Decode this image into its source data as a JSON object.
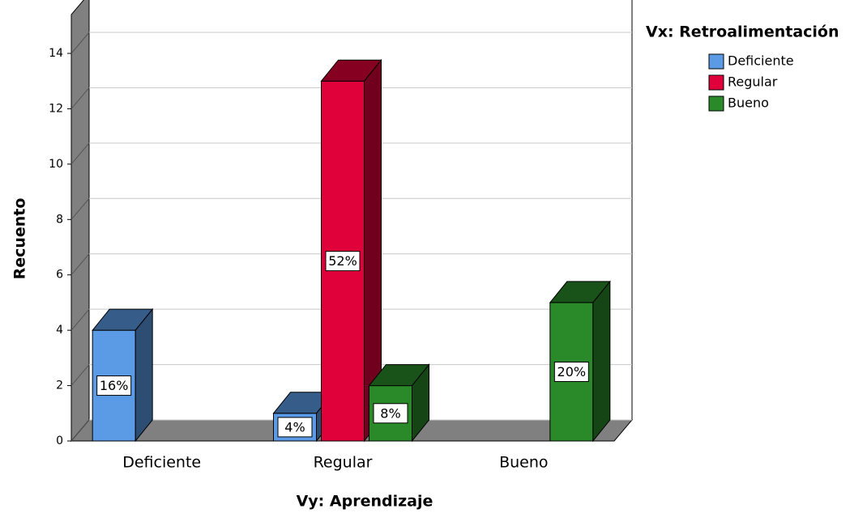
{
  "chart_data": {
    "type": "bar3d",
    "categories": [
      "Deficiente",
      "Regular",
      "Bueno"
    ],
    "series": [
      {
        "name": "Deficiente",
        "color": "#5b9be6",
        "values": [
          4,
          1,
          null
        ],
        "value_labels": [
          "16%",
          "4%",
          null
        ]
      },
      {
        "name": "Regular",
        "color": "#e0003a",
        "values": [
          null,
          13,
          null
        ],
        "value_labels": [
          null,
          "52%",
          null
        ]
      },
      {
        "name": "Bueno",
        "color": "#2a8a2a",
        "values": [
          null,
          2,
          5
        ],
        "value_labels": [
          null,
          "8%",
          "20%"
        ]
      }
    ],
    "x_label": "Vy: Aprendizaje",
    "y_label": "Recuento",
    "legend_title": "Vx: Retroalimentación",
    "ylim": [
      0,
      15.4
    ],
    "yticks": [
      0,
      2,
      4,
      6,
      8,
      10,
      12,
      14
    ],
    "grid": true,
    "legend": "right"
  }
}
